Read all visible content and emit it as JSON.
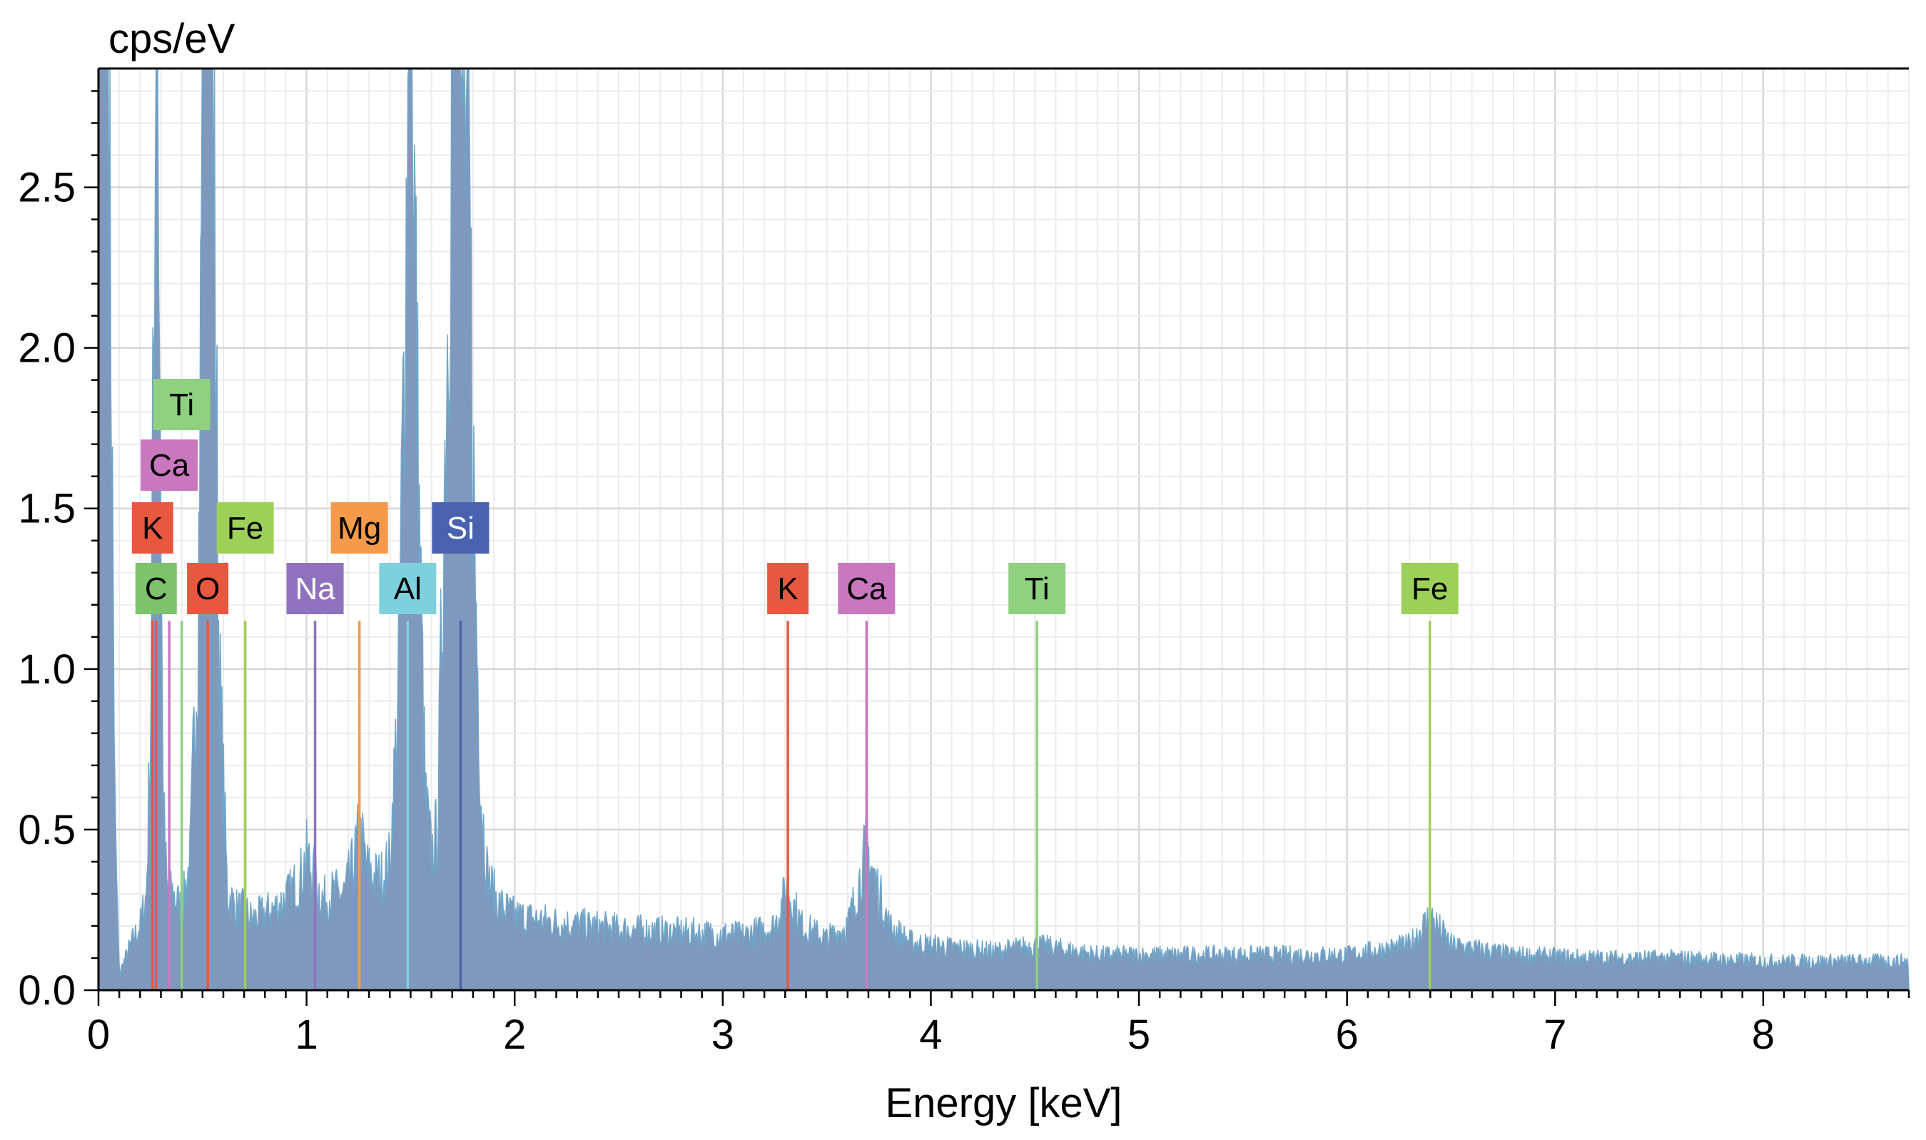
{
  "chart_data": {
    "type": "line",
    "title": "",
    "xlabel": "Energy [keV]",
    "ylabel": "cps/eV",
    "xlim": [
      0,
      8.7
    ],
    "ylim": [
      0,
      2.87
    ],
    "grid": true,
    "x_ticks": [
      "0",
      "1",
      "2",
      "3",
      "4",
      "5",
      "6",
      "7",
      "8"
    ],
    "y_ticks": [
      "0.0",
      "0.5",
      "1.0",
      "1.5",
      "2.0",
      "2.5"
    ],
    "spectrum_color": "#7f98bd",
    "series": [
      {
        "x": [
          0.0,
          0.02,
          0.05,
          0.08,
          0.1,
          0.13,
          0.16,
          0.2,
          0.23,
          0.25,
          0.265,
          0.275,
          0.28,
          0.285,
          0.295,
          0.31,
          0.33,
          0.36,
          0.4,
          0.44,
          0.48,
          0.5,
          0.525,
          0.55,
          0.58,
          0.62,
          0.67,
          0.7,
          0.74,
          0.8,
          0.86,
          0.92,
          0.97,
          1.0,
          1.04,
          1.08,
          1.12,
          1.18,
          1.22,
          1.25,
          1.27,
          1.29,
          1.32,
          1.36,
          1.4,
          1.44,
          1.47,
          1.49,
          1.51,
          1.54,
          1.57,
          1.6,
          1.63,
          1.66,
          1.7,
          1.74,
          1.78,
          1.81,
          1.84,
          1.87,
          1.92,
          2.0,
          2.2,
          2.5,
          2.8,
          3.1,
          3.25,
          3.31,
          3.38,
          3.5,
          3.6,
          3.65,
          3.69,
          3.73,
          3.8,
          3.9,
          4.0,
          4.3,
          4.51,
          4.8,
          5.2,
          5.6,
          6.0,
          6.3,
          6.4,
          6.5,
          6.8,
          7.2,
          7.6,
          8.0,
          8.4,
          8.7
        ],
        "y": [
          2.87,
          2.87,
          2.87,
          0.5,
          0.05,
          0.1,
          0.15,
          0.2,
          0.3,
          0.8,
          2.0,
          2.87,
          2.87,
          2.87,
          2.0,
          0.6,
          0.3,
          0.3,
          0.25,
          0.4,
          1.2,
          2.87,
          2.87,
          2.87,
          1.0,
          0.3,
          0.25,
          0.25,
          0.22,
          0.24,
          0.26,
          0.3,
          0.35,
          0.42,
          0.35,
          0.28,
          0.3,
          0.3,
          0.38,
          0.48,
          0.45,
          0.38,
          0.35,
          0.35,
          0.4,
          0.9,
          2.0,
          2.87,
          2.87,
          1.5,
          0.6,
          0.42,
          0.5,
          1.5,
          2.87,
          2.87,
          2.5,
          1.3,
          0.6,
          0.35,
          0.27,
          0.23,
          0.21,
          0.19,
          0.18,
          0.17,
          0.2,
          0.32,
          0.2,
          0.16,
          0.2,
          0.32,
          0.45,
          0.35,
          0.2,
          0.15,
          0.14,
          0.12,
          0.14,
          0.11,
          0.11,
          0.11,
          0.11,
          0.14,
          0.23,
          0.14,
          0.11,
          0.1,
          0.1,
          0.09,
          0.09,
          0.09
        ]
      }
    ],
    "element_markers": [
      {
        "label": "C",
        "energy": 0.277,
        "row": 1,
        "color": "#7cc36b",
        "text_color": "#000000",
        "line_color": "#e85a3a",
        "line_top": 1.15
      },
      {
        "label": "K",
        "energy": 0.26,
        "row": 2,
        "color": "#e8573f",
        "text_color": "#000000",
        "line_color": "#e8573f",
        "line_top": 1.15
      },
      {
        "label": "Ca",
        "energy": 0.34,
        "row": 3,
        "color": "#c978c0",
        "text_color": "#000000",
        "line_color": "#c978c0",
        "line_top": 1.15
      },
      {
        "label": "Ti",
        "energy": 0.4,
        "row": 4,
        "color": "#8fd081",
        "text_color": "#000000",
        "line_color": "#8fd081",
        "line_top": 1.15
      },
      {
        "label": "O",
        "energy": 0.525,
        "row": 1,
        "color": "#e8573f",
        "text_color": "#000000",
        "line_color": "#e8573f",
        "line_top": 1.15
      },
      {
        "label": "Fe",
        "energy": 0.705,
        "row": 2,
        "color": "#9dd058",
        "text_color": "#000000",
        "line_color": "#9dd058",
        "line_top": 1.15
      },
      {
        "label": "Na",
        "energy": 1.041,
        "row": 1,
        "color": "#8f71bd",
        "text_color": "#ffffff",
        "line_color": "#8f71bd",
        "line_top": 1.15
      },
      {
        "label": "Mg",
        "energy": 1.254,
        "row": 2,
        "color": "#f59a4a",
        "text_color": "#000000",
        "line_color": "#f59a4a",
        "line_top": 1.15
      },
      {
        "label": "Al",
        "energy": 1.486,
        "row": 1,
        "color": "#7fd0dd",
        "text_color": "#000000",
        "line_color": "#7fd0dd",
        "line_top": 1.15
      },
      {
        "label": "Si",
        "energy": 1.74,
        "row": 2,
        "color": "#4a62ad",
        "text_color": "#ffffff",
        "line_color": "#4a62ad",
        "line_top": 1.15
      },
      {
        "label": "K",
        "energy": 3.313,
        "row": 1,
        "color": "#e8573f",
        "text_color": "#000000",
        "line_color": "#e8573f",
        "line_top": 1.15
      },
      {
        "label": "Ca",
        "energy": 3.691,
        "row": 1,
        "color": "#c978c0",
        "text_color": "#000000",
        "line_color": "#c978c0",
        "line_top": 1.15
      },
      {
        "label": "Ti",
        "energy": 4.51,
        "row": 1,
        "color": "#8fd081",
        "text_color": "#000000",
        "line_color": "#8fd081",
        "line_top": 1.15
      },
      {
        "label": "Fe",
        "energy": 6.398,
        "row": 1,
        "color": "#9dd058",
        "text_color": "#000000",
        "line_color": "#9dd058",
        "line_top": 1.15
      }
    ]
  }
}
